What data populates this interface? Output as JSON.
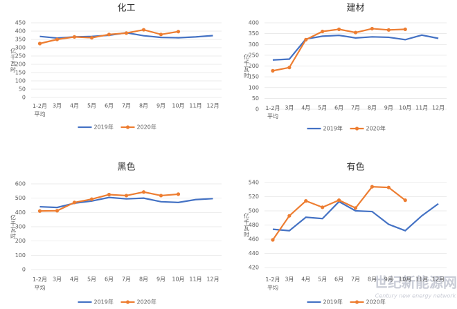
{
  "chart_data": [
    {
      "type": "line",
      "title": "化工",
      "y_label": "亿千瓦时",
      "categories": [
        "1-2月\n平均",
        "3月",
        "4月",
        "5月",
        "6月",
        "7月",
        "8月",
        "9月",
        "10月",
        "11月",
        "12月"
      ],
      "series": [
        {
          "name": "2019年",
          "color": "#4472c4",
          "markers": false,
          "values": [
            368,
            358,
            365,
            368,
            375,
            390,
            372,
            362,
            360,
            365,
            373
          ]
        },
        {
          "name": "2020年",
          "color": "#ed7d31",
          "markers": true,
          "values": [
            325,
            350,
            365,
            360,
            380,
            388,
            408,
            380,
            397,
            null,
            null
          ]
        }
      ],
      "ylim": [
        0,
        450
      ],
      "yticks": [
        0,
        50,
        100,
        150,
        200,
        250,
        300,
        350,
        400,
        450
      ],
      "grid": true
    },
    {
      "type": "line",
      "title": "建材",
      "y_label": "亿千瓦时",
      "categories": [
        "1-2月\n平均",
        "3月",
        "4月",
        "5月",
        "6月",
        "7月",
        "8月",
        "9月",
        "10月",
        "11月",
        "12月"
      ],
      "series": [
        {
          "name": "2019年",
          "color": "#4472c4",
          "markers": false,
          "values": [
            228,
            232,
            325,
            338,
            342,
            330,
            335,
            333,
            322,
            343,
            328
          ]
        },
        {
          "name": "2020年",
          "color": "#ed7d31",
          "markers": true,
          "values": [
            178,
            193,
            322,
            360,
            370,
            355,
            373,
            367,
            370,
            null,
            null
          ]
        }
      ],
      "ylim": [
        0,
        400
      ],
      "yticks": [
        0,
        50,
        100,
        150,
        200,
        250,
        300,
        350,
        400
      ],
      "grid": true
    },
    {
      "type": "line",
      "title": "黑色",
      "y_label": "亿千瓦时",
      "categories": [
        "1-2月\n平均",
        "3月",
        "4月",
        "5月",
        "6月",
        "7月",
        "8月",
        "9月",
        "10月",
        "11月",
        "12月"
      ],
      "series": [
        {
          "name": "2019年",
          "color": "#4472c4",
          "markers": false,
          "values": [
            440,
            435,
            465,
            480,
            505,
            495,
            500,
            475,
            470,
            490,
            497
          ]
        },
        {
          "name": "2020年",
          "color": "#ed7d31",
          "markers": true,
          "values": [
            410,
            412,
            470,
            493,
            525,
            518,
            543,
            518,
            528,
            null,
            null
          ]
        }
      ],
      "ylim": [
        0,
        600
      ],
      "yticks": [
        0,
        100,
        200,
        300,
        400,
        500,
        600
      ],
      "grid": true
    },
    {
      "type": "line",
      "title": "有色",
      "y_label": "亿千瓦时",
      "categories": [
        "1-2月\n平均",
        "3月",
        "4月",
        "5月",
        "6月",
        "7月",
        "8月",
        "9月",
        "10月",
        "11月",
        "12月"
      ],
      "series": [
        {
          "name": "2019年",
          "color": "#4472c4",
          "markers": false,
          "values": [
            474,
            472,
            491,
            489,
            513,
            500,
            499,
            481,
            472,
            493,
            510
          ]
        },
        {
          "name": "2020年",
          "color": "#ed7d31",
          "markers": true,
          "values": [
            459,
            493,
            514,
            505,
            515,
            504,
            534,
            533,
            515,
            null,
            null
          ]
        }
      ],
      "ylim": [
        420,
        540
      ],
      "yticks": [
        420,
        440,
        460,
        480,
        500,
        520,
        540
      ],
      "grid": true
    }
  ],
  "watermark": {
    "title": "世纪新能源网",
    "subtitle": "Century new energy network"
  }
}
